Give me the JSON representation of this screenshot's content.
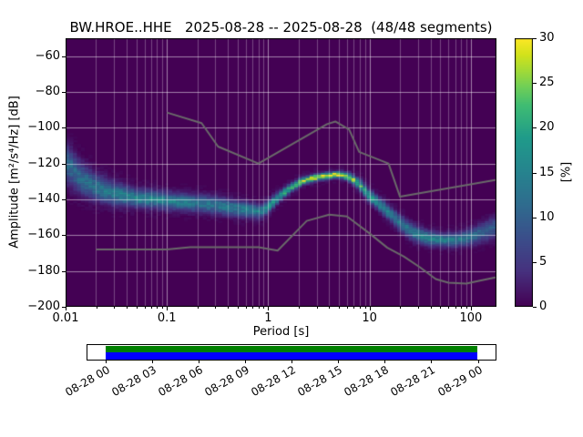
{
  "title": "BW.HROE..HHE   2025-08-28 -- 2025-08-28  (48/48 segments)",
  "chart_data": {
    "type": "heatmap",
    "x_axis": {
      "label": "Period [s]",
      "scale": "log",
      "min": 0.01,
      "max": 179,
      "major_ticks": [
        0.01,
        0.1,
        1,
        10,
        100
      ],
      "major_tick_labels": [
        "0.01",
        "0.1",
        "1",
        "10",
        "100"
      ]
    },
    "y_axis": {
      "label": "Amplitude [m²/s⁴/Hz] [dB]",
      "min": -200,
      "max": -50,
      "ticks": [
        -60,
        -80,
        -100,
        -120,
        -140,
        -160,
        -180,
        -200
      ],
      "tick_labels": [
        "−60",
        "−80",
        "−100",
        "−120",
        "−140",
        "−160",
        "−180",
        "−200"
      ]
    },
    "colorbar": {
      "label": "[%]",
      "min": 0,
      "max": 30,
      "ticks": [
        0,
        5,
        10,
        15,
        20,
        25,
        30
      ],
      "tick_labels": [
        "0",
        "5",
        "10",
        "15",
        "20",
        "25",
        "30"
      ]
    },
    "colormap_stops": [
      [
        0.0,
        "#440154"
      ],
      [
        0.13,
        "#46317e"
      ],
      [
        0.25,
        "#3b4d8a"
      ],
      [
        0.38,
        "#2f6c8e"
      ],
      [
        0.5,
        "#26838e"
      ],
      [
        0.63,
        "#1f9b8a"
      ],
      [
        0.75,
        "#3fbc73"
      ],
      [
        0.82,
        "#70cf57"
      ],
      [
        0.88,
        "#a2da37"
      ],
      [
        0.94,
        "#d2e21b"
      ],
      [
        1.0,
        "#fde725"
      ]
    ],
    "ppsd_ridge": {
      "comment_units": "periods in s; db ridge of probability band; peak_percent = max probability; sigma_db = spread",
      "periods": [
        0.01,
        0.014,
        0.02,
        0.03,
        0.05,
        0.08,
        0.12,
        0.2,
        0.3,
        0.45,
        0.65,
        0.85,
        1.0,
        1.3,
        1.7,
        2.2,
        3.0,
        4.0,
        5.0,
        6.0,
        7.0,
        8.5,
        10.0,
        12.0,
        15.0,
        20.0,
        27.0,
        38.0,
        55.0,
        80.0,
        110.0,
        150.0,
        179.0
      ],
      "db": [
        -119,
        -128,
        -133,
        -136.5,
        -139,
        -140,
        -141,
        -142,
        -143,
        -144.5,
        -146,
        -146.5,
        -144,
        -138,
        -133,
        -129.5,
        -127.5,
        -126.5,
        -126,
        -127,
        -129,
        -133,
        -138,
        -141.5,
        -146.5,
        -153,
        -158.5,
        -161.5,
        -162.5,
        -162,
        -160,
        -157,
        -155.5
      ],
      "peak_percent": [
        11,
        12,
        13,
        14,
        15,
        15,
        14,
        13,
        13,
        13,
        14,
        15,
        16,
        18,
        22,
        26,
        29,
        30,
        30,
        28,
        24,
        20,
        18,
        17,
        14,
        13,
        14,
        15,
        15,
        14,
        12,
        10,
        9
      ],
      "sigma_db": [
        7.0,
        5.5,
        4.5,
        4.0,
        3.2,
        3.0,
        3.0,
        3.0,
        3.0,
        2.8,
        2.6,
        2.4,
        2.2,
        1.8,
        1.5,
        1.3,
        1.2,
        1.1,
        1.1,
        1.3,
        1.6,
        2.0,
        2.2,
        2.2,
        2.5,
        2.8,
        2.8,
        2.5,
        2.3,
        2.5,
        3.0,
        3.5,
        4.0
      ]
    },
    "noise_models": {
      "color": "#6a6a6a",
      "nhnm": [
        [
          0.1,
          -91.5
        ],
        [
          0.22,
          -97.4
        ],
        [
          0.32,
          -110.5
        ],
        [
          0.8,
          -120.0
        ],
        [
          3.8,
          -98.0
        ],
        [
          4.6,
          -96.5
        ],
        [
          6.3,
          -101.0
        ],
        [
          7.9,
          -113.5
        ],
        [
          15.4,
          -120.0
        ],
        [
          20.0,
          -138.5
        ],
        [
          179.0,
          -129.0
        ]
      ],
      "nlnm": [
        [
          0.02,
          -168.0
        ],
        [
          0.1,
          -168.0
        ],
        [
          0.17,
          -166.7
        ],
        [
          0.45,
          -166.7
        ],
        [
          0.8,
          -166.7
        ],
        [
          1.24,
          -168.6
        ],
        [
          2.4,
          -152.0
        ],
        [
          4.0,
          -148.5
        ],
        [
          6.0,
          -149.5
        ],
        [
          10.0,
          -159.0
        ],
        [
          15.0,
          -167.0
        ],
        [
          21.9,
          -172.0
        ],
        [
          31.6,
          -178.0
        ],
        [
          45.0,
          -184.5
        ],
        [
          60.0,
          -186.5
        ],
        [
          90.0,
          -187.0
        ],
        [
          120.0,
          -185.5
        ],
        [
          179.0,
          -183.5
        ]
      ]
    }
  },
  "coverage": {
    "coverage_color": "#008000",
    "data_color": "#0000ff",
    "tick_labels": [
      "08-28 00",
      "08-28 03",
      "08-28 06",
      "08-28 09",
      "08-28 12",
      "08-28 15",
      "08-28 18",
      "08-28 21",
      "08-29 00"
    ]
  }
}
